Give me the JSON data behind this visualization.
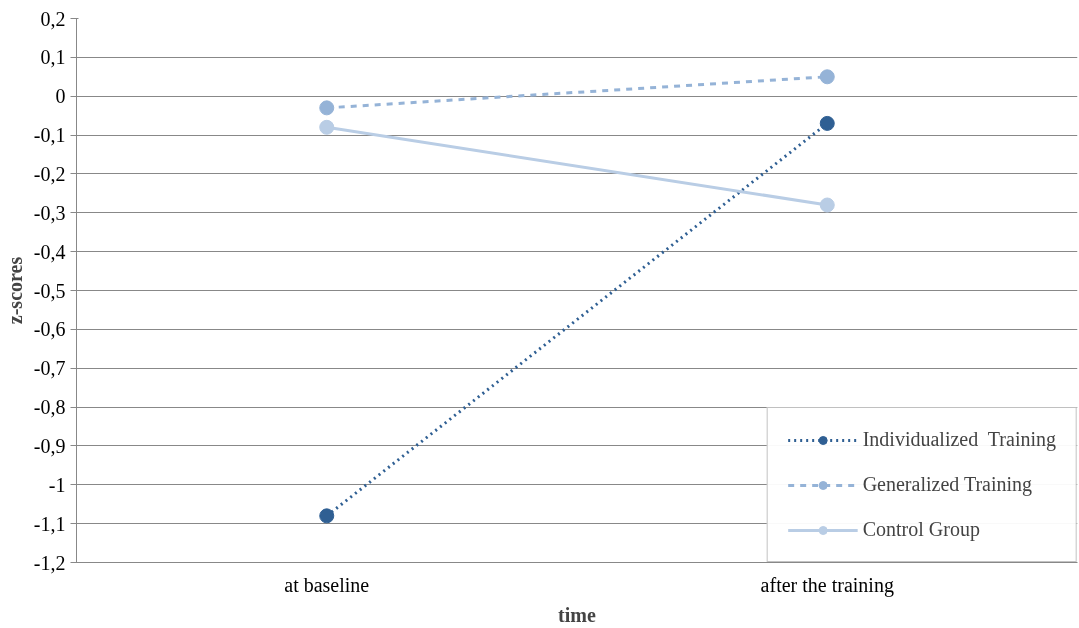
{
  "chart_data": {
    "type": "line",
    "xlabel": "time",
    "ylabel": "z-scores",
    "categories": [
      "at baseline",
      "after the training"
    ],
    "series": [
      {
        "name": "Individualized  Training",
        "color": "#2f5f93",
        "values": [
          -1.08,
          -0.07
        ],
        "line_style": "dotted"
      },
      {
        "name": "Generalized Training",
        "color": "#95b3d7",
        "values": [
          -0.03,
          0.05
        ],
        "line_style": "dashed"
      },
      {
        "name": "Control Group",
        "color": "#b9cde5",
        "values": [
          -0.08,
          -0.28
        ],
        "line_style": "solid"
      }
    ],
    "ylim": [
      -1.2,
      0.2
    ],
    "yticks": [
      {
        "value": -1.2,
        "label": "-1,2"
      },
      {
        "value": -1.1,
        "label": "-1,1"
      },
      -1,
      {
        "value": -0.9,
        "label": "-0,9"
      },
      {
        "value": -0.8,
        "label": "-0,8"
      },
      {
        "value": -0.7,
        "label": "-0,7"
      },
      {
        "value": -0.6,
        "label": "-0,6"
      },
      {
        "value": -0.5,
        "label": "-0,5"
      },
      {
        "value": -0.4,
        "label": "-0,4"
      },
      {
        "value": -0.3,
        "label": "-0,3"
      },
      {
        "value": -0.2,
        "label": "-0,2"
      },
      {
        "value": -0.1,
        "label": "-0,1"
      },
      0,
      {
        "value": 0.1,
        "label": "0,1"
      },
      {
        "value": 0.2,
        "label": "0,2"
      }
    ],
    "grid": "y",
    "legend": "bottom right",
    "marker": "circle"
  }
}
